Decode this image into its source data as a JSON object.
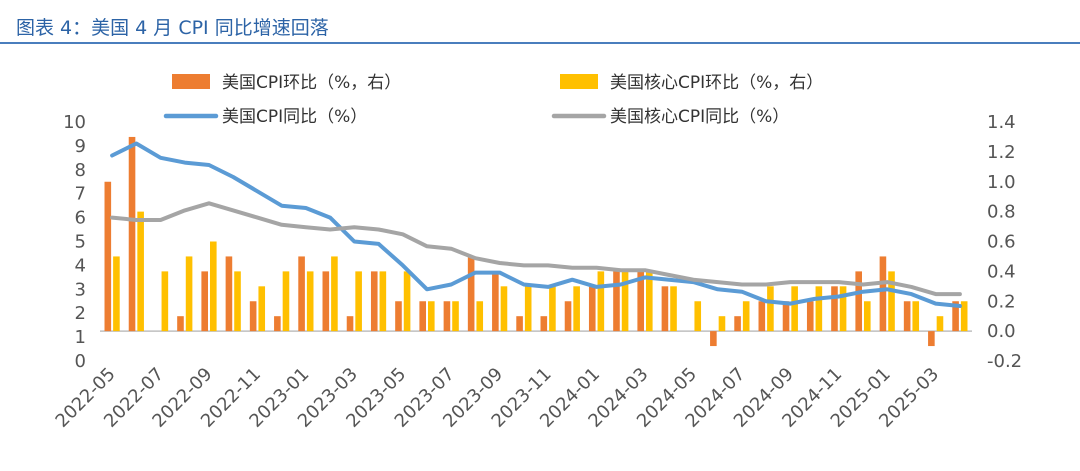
{
  "title": "图表 4：美国 4 月 CPI 同比增速回落",
  "chart_data": {
    "type": "bar+line",
    "x_labels_shown": [
      "2022-05",
      "2022-07",
      "2022-09",
      "2022-11",
      "2023-01",
      "2023-03",
      "2023-05",
      "2023-07",
      "2023-09",
      "2023-11",
      "2024-01",
      "2024-03",
      "2024-05",
      "2024-07",
      "2024-09",
      "2024-11",
      "2025-01",
      "2025-03"
    ],
    "months": [
      "2022-05",
      "2022-06",
      "2022-07",
      "2022-08",
      "2022-09",
      "2022-10",
      "2022-11",
      "2022-12",
      "2023-01",
      "2023-02",
      "2023-03",
      "2023-04",
      "2023-05",
      "2023-06",
      "2023-07",
      "2023-08",
      "2023-09",
      "2023-10",
      "2023-11",
      "2023-12",
      "2024-01",
      "2024-02",
      "2024-03",
      "2024-04",
      "2024-05",
      "2024-06",
      "2024-07",
      "2024-08",
      "2024-09",
      "2024-10",
      "2024-11",
      "2024-12",
      "2025-01",
      "2025-02",
      "2025-03",
      "2025-04"
    ],
    "y_left": {
      "min": 0,
      "max": 10,
      "ticks": [
        "0",
        "1",
        "2",
        "3",
        "4",
        "5",
        "6",
        "7",
        "8",
        "9",
        "10"
      ]
    },
    "y_right": {
      "min": -0.2,
      "max": 1.4,
      "ticks": [
        "-0.2",
        "0.0",
        "0.2",
        "0.4",
        "0.6",
        "0.8",
        "1.0",
        "1.2",
        "1.4"
      ]
    },
    "series": [
      {
        "name": "美国CPI环比（%，右）",
        "type": "bar",
        "axis": "right",
        "color": "#ed7d31",
        "values": [
          1.0,
          1.3,
          0.0,
          0.1,
          0.4,
          0.5,
          0.2,
          0.1,
          0.5,
          0.4,
          0.1,
          0.4,
          0.2,
          0.2,
          0.2,
          0.5,
          0.4,
          0.1,
          0.1,
          0.2,
          0.3,
          0.4,
          0.4,
          0.3,
          0.0,
          -0.1,
          0.1,
          0.2,
          0.2,
          0.2,
          0.3,
          0.4,
          0.5,
          0.2,
          -0.1,
          0.2
        ]
      },
      {
        "name": "美国核心CPI环比（%，右）",
        "type": "bar",
        "axis": "right",
        "color": "#ffc000",
        "values": [
          0.5,
          0.8,
          0.4,
          0.5,
          0.6,
          0.4,
          0.3,
          0.4,
          0.4,
          0.5,
          0.4,
          0.4,
          0.4,
          0.2,
          0.2,
          0.2,
          0.3,
          0.3,
          0.3,
          0.3,
          0.4,
          0.4,
          0.4,
          0.3,
          0.2,
          0.1,
          0.2,
          0.3,
          0.3,
          0.3,
          0.3,
          0.2,
          0.4,
          0.2,
          0.1,
          0.2
        ]
      },
      {
        "name": "美国CPI同比（%）",
        "type": "line",
        "axis": "left",
        "color": "#5b9bd5",
        "values": [
          8.6,
          9.1,
          8.5,
          8.3,
          8.2,
          7.7,
          7.1,
          6.5,
          6.4,
          6.0,
          5.0,
          4.9,
          4.0,
          3.0,
          3.2,
          3.7,
          3.7,
          3.2,
          3.1,
          3.4,
          3.1,
          3.2,
          3.5,
          3.4,
          3.3,
          3.0,
          2.9,
          2.5,
          2.4,
          2.6,
          2.7,
          2.9,
          3.0,
          2.8,
          2.4,
          2.3
        ]
      },
      {
        "name": "美国核心CPI同比（%）",
        "type": "line",
        "axis": "left",
        "color": "#a5a5a5",
        "values": [
          6.0,
          5.9,
          5.9,
          6.3,
          6.6,
          6.3,
          6.0,
          5.7,
          5.6,
          5.5,
          5.6,
          5.5,
          5.3,
          4.8,
          4.7,
          4.3,
          4.1,
          4.0,
          4.0,
          3.9,
          3.9,
          3.8,
          3.8,
          3.6,
          3.4,
          3.3,
          3.2,
          3.2,
          3.3,
          3.3,
          3.3,
          3.2,
          3.3,
          3.1,
          2.8,
          2.8
        ]
      }
    ],
    "legend": [
      {
        "name": "美国CPI环比（%，右）",
        "kind": "bar",
        "color": "#ed7d31"
      },
      {
        "name": "美国核心CPI环比（%，右）",
        "kind": "bar",
        "color": "#ffc000"
      },
      {
        "name": "美国CPI同比（%）",
        "kind": "line",
        "color": "#5b9bd5"
      },
      {
        "name": "美国核心CPI同比（%）",
        "kind": "line",
        "color": "#a5a5a5"
      }
    ],
    "legend_placement": "top",
    "grid": false
  }
}
